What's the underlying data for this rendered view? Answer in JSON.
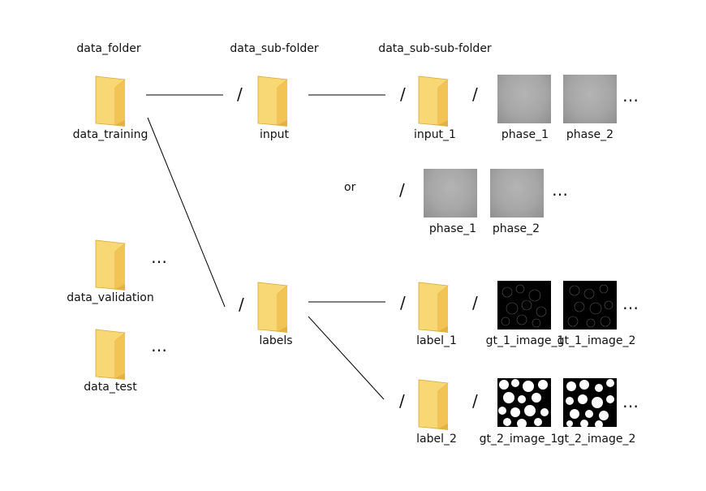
{
  "headers": {
    "level1": "data_folder",
    "level2": "data_sub-folder",
    "level3": "data_sub-sub-folder"
  },
  "folders": {
    "data_training": "data_training",
    "data_validation": "data_validation",
    "data_test": "data_test",
    "input": "input",
    "labels": "labels",
    "input_1": "input_1",
    "label_1": "label_1",
    "label_2": "label_2"
  },
  "images": {
    "phase_1": "phase_1",
    "phase_2": "phase_2",
    "gt_1_image_1": "gt_1_image_1",
    "gt_1_image_2": "gt_1_image_2",
    "gt_2_image_1": "gt_2_image_1",
    "gt_2_image_2": "gt_2_image_2"
  },
  "symbols": {
    "separator": "/",
    "ellipsis": "…",
    "or": "or"
  },
  "colors": {
    "folder_body": "#f8d775",
    "folder_back": "#e3b341",
    "folder_edge": "#c9982e",
    "line": "#000000"
  }
}
